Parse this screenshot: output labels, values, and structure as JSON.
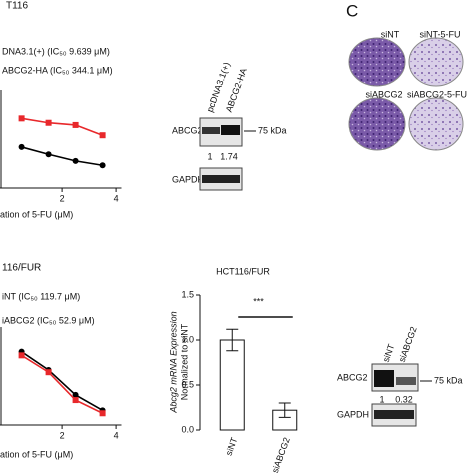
{
  "chart_data": [
    {
      "type": "line",
      "title": "T116",
      "x": [
        0.5,
        1.5,
        2.5,
        3.5
      ],
      "xlim": [
        -0.3,
        4.2
      ],
      "xticks": [
        2,
        4
      ],
      "ylim": [
        0,
        1.2
      ],
      "x_label": "ation of 5-FU (μM)",
      "series": [
        {
          "name": "DNA3.1(+) (IC₅₀ 9.639 μM)",
          "color": "#000000",
          "values": [
            0.56,
            0.46,
            0.37,
            0.31
          ]
        },
        {
          "name": "ABCG2-HA (IC₅₀ 344.1 μM)",
          "color": "#e8282b",
          "values": [
            0.95,
            0.89,
            0.86,
            0.72
          ]
        }
      ]
    },
    {
      "type": "line",
      "title": "116/FUR",
      "x": [
        0.5,
        1.5,
        2.5,
        3.5
      ],
      "xlim": [
        -0.3,
        4.2
      ],
      "xticks": [
        2,
        4
      ],
      "ylim": [
        0,
        1.2
      ],
      "x_label": "ation of 5-FU (μM)",
      "series": [
        {
          "name": "iNT (IC₅₀ 119.7 μM)",
          "color": "#000000",
          "values": [
            1.0,
            0.75,
            0.41,
            0.2
          ]
        },
        {
          "name": "iABCG2 (IC₅₀ 52.9 μM)",
          "color": "#e8282b",
          "values": [
            0.95,
            0.72,
            0.34,
            0.16
          ]
        }
      ]
    },
    {
      "type": "bar",
      "title": "HCT116/FUR",
      "categories": [
        "siNT",
        "siABCG2"
      ],
      "values": [
        1.0,
        0.22
      ],
      "errors": [
        0.12,
        0.08
      ],
      "ylim": [
        0,
        1.5
      ],
      "yticks": [
        {
          "value": 0,
          "label": "0.0"
        },
        {
          "value": 0.5,
          "label": "0.5"
        },
        {
          "value": 1,
          "label": "1.0"
        },
        {
          "value": 1.5,
          "label": "1.5"
        }
      ],
      "y_label": "Abcg2 mRNA Expression",
      "y_label_2": "Normalized to siNT",
      "annotation": "***"
    }
  ],
  "panel_label": "C",
  "plates": [
    "siNT",
    "siNT-5-FU",
    "siABCG2",
    "siABCG2-5-FU"
  ],
  "blots": [
    {
      "lanes": [
        "pcDNA3.1(+)",
        "ABCG2-HA"
      ],
      "rows": [
        "ABCG2",
        "GAPDH"
      ],
      "marker": "75 kDa",
      "quant": [
        1,
        1.74
      ]
    },
    {
      "lanes": [
        "siNT",
        "siABCG2"
      ],
      "rows": [
        "ABCG2",
        "GAPDH"
      ],
      "marker": "75 kDa",
      "quant": [
        1,
        0.32
      ]
    }
  ]
}
